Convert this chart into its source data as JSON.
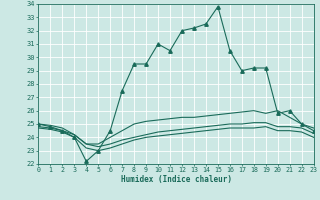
{
  "xlabel": "Humidex (Indice chaleur)",
  "xlim": [
    0,
    23
  ],
  "ylim": [
    22,
    34
  ],
  "yticks": [
    22,
    23,
    24,
    25,
    26,
    27,
    28,
    29,
    30,
    31,
    32,
    33,
    34
  ],
  "xticks": [
    0,
    1,
    2,
    3,
    4,
    5,
    6,
    7,
    8,
    9,
    10,
    11,
    12,
    13,
    14,
    15,
    16,
    17,
    18,
    19,
    20,
    21,
    22,
    23
  ],
  "bg_color": "#cce8e4",
  "grid_color": "#b8dbd8",
  "line_color": "#1a6b5a",
  "line1_x": [
    0,
    1,
    2,
    3,
    4,
    5,
    6,
    7,
    8,
    9,
    10,
    11,
    12,
    13,
    14,
    15,
    16,
    17,
    18,
    19,
    20,
    21,
    22,
    23
  ],
  "line1_y": [
    25.0,
    24.8,
    24.5,
    24.0,
    22.2,
    23.0,
    24.5,
    27.5,
    29.5,
    29.5,
    31.0,
    30.5,
    32.0,
    32.2,
    32.5,
    33.8,
    30.5,
    29.0,
    29.2,
    29.2,
    25.8,
    26.0,
    25.0,
    24.5
  ],
  "line2_x": [
    0,
    1,
    2,
    3,
    4,
    5,
    6,
    7,
    8,
    9,
    10,
    11,
    12,
    13,
    14,
    15,
    16,
    17,
    18,
    19,
    20,
    21,
    22,
    23
  ],
  "line2_y": [
    24.8,
    24.7,
    24.5,
    24.2,
    23.5,
    23.3,
    23.5,
    23.8,
    24.0,
    24.2,
    24.4,
    24.5,
    24.6,
    24.7,
    24.8,
    24.9,
    25.0,
    25.0,
    25.1,
    25.1,
    24.8,
    24.8,
    24.7,
    24.3
  ],
  "line3_x": [
    0,
    1,
    2,
    3,
    4,
    5,
    6,
    7,
    8,
    9,
    10,
    11,
    12,
    13,
    14,
    15,
    16,
    17,
    18,
    19,
    20,
    21,
    22,
    23
  ],
  "line3_y": [
    24.7,
    24.6,
    24.4,
    24.0,
    23.2,
    23.0,
    23.2,
    23.5,
    23.8,
    24.0,
    24.1,
    24.2,
    24.3,
    24.4,
    24.5,
    24.6,
    24.7,
    24.7,
    24.7,
    24.8,
    24.5,
    24.5,
    24.4,
    24.0
  ],
  "line4_x": [
    0,
    1,
    2,
    3,
    4,
    5,
    6,
    7,
    8,
    9,
    10,
    11,
    12,
    13,
    14,
    15,
    16,
    17,
    18,
    19,
    20,
    21,
    22,
    23
  ],
  "line4_y": [
    25.0,
    24.9,
    24.7,
    24.2,
    23.5,
    23.5,
    24.0,
    24.5,
    25.0,
    25.2,
    25.3,
    25.4,
    25.5,
    25.5,
    25.6,
    25.7,
    25.8,
    25.9,
    26.0,
    25.8,
    26.0,
    25.5,
    25.0,
    24.7
  ]
}
